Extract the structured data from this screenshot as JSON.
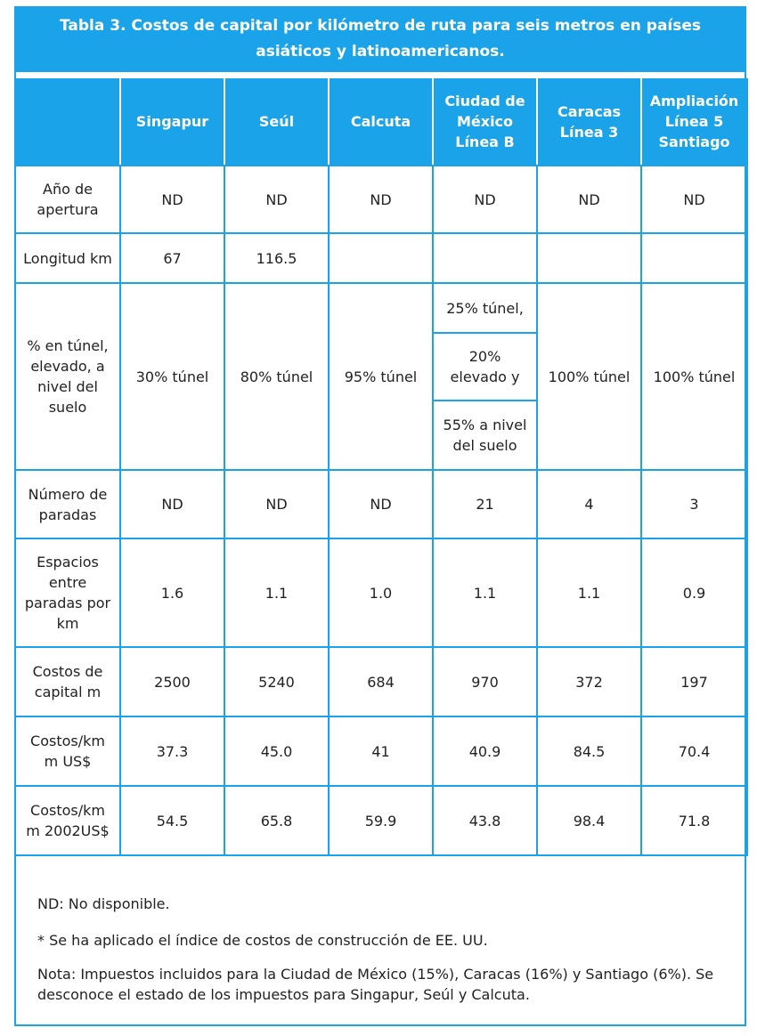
{
  "title": "Tabla 3. Costos de capital por kilómetro de ruta para seis metros en países asiáticos y latinoamericanos.",
  "columns": [
    "Singapur",
    "Seúl",
    "Calcuta",
    "Ciudad de México Línea B",
    "Caracas Línea 3",
    "Ampliación Línea 5 Santiago"
  ],
  "rows": {
    "apertura": {
      "label": "Año de apertura",
      "values": [
        "ND",
        "ND",
        "ND",
        "ND",
        "ND",
        "ND"
      ]
    },
    "longitud": {
      "label": "Longitud km",
      "values": [
        "67",
        "116.5",
        "",
        "",
        "",
        ""
      ]
    },
    "tunel": {
      "label": "% en túnel, elevado, a nivel del suelo",
      "values": [
        "30% túnel",
        "80% túnel",
        "95% túnel",
        "",
        "100% túnel",
        "100% túnel"
      ],
      "mexico_parts": [
        "25% túnel,",
        "20% elevado y",
        "55% a nivel del suelo"
      ]
    },
    "paradas": {
      "label": "Número de paradas",
      "values": [
        "ND",
        "ND",
        "ND",
        "21",
        "4",
        "3"
      ]
    },
    "espacios": {
      "label": "Espacios entre paradas por km",
      "values": [
        "1.6",
        "1.1",
        "1.0",
        "1.1",
        "1.1",
        "0.9"
      ]
    },
    "costos": {
      "label": "Costos de capital m",
      "values": [
        "2500",
        "5240",
        "684",
        "970",
        "372",
        "197"
      ]
    },
    "costos_km": {
      "label": "Costos/km m US$",
      "values": [
        "37.3",
        "45.0",
        "41",
        "40.9",
        "84.5",
        "70.4"
      ]
    },
    "costos_km_2002": {
      "label": "Costos/km m 2002US$",
      "values": [
        "54.5",
        "65.8",
        "59.9",
        "43.8",
        "98.4",
        "71.8"
      ]
    }
  },
  "notes": [
    "ND: No disponible.",
    "* Se ha aplicado el índice de costos de construcción de EE. UU.",
    "Nota: Impuestos incluidos para la Ciudad de México (15%), Caracas (16%) y Santiago (6%). Se desconoce el estado de los impuestos para Singapur, Seúl y Calcuta."
  ],
  "colors": {
    "accent": "#1aa3e8",
    "text": "#222222",
    "header_text": "#ffffff"
  }
}
